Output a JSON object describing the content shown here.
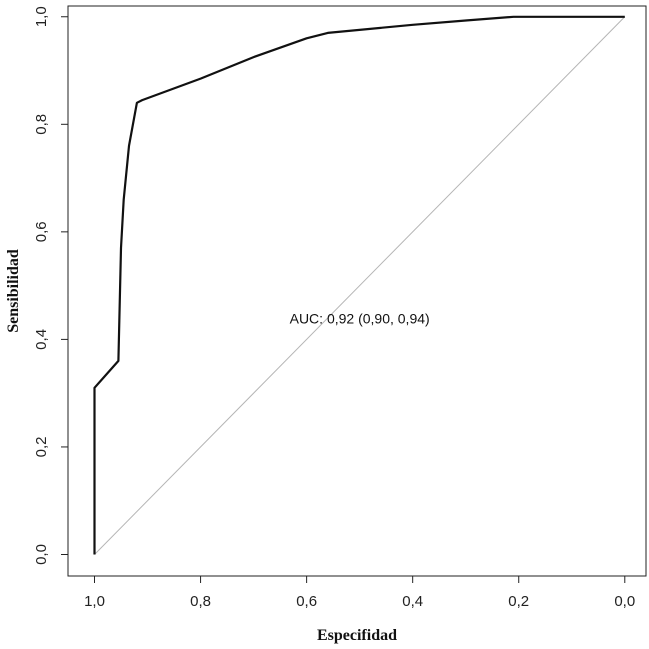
{
  "chart_data": {
    "type": "line",
    "xlabel": "Especifidad",
    "ylabel": "Sensibilidad",
    "xlim": [
      1.05,
      -0.04
    ],
    "ylim": [
      -0.04,
      1.02
    ],
    "x_reversed": true,
    "x_ticks": [
      1.0,
      0.8,
      0.6,
      0.4,
      0.2,
      0.0
    ],
    "x_tick_labels": [
      "1,0",
      "0,8",
      "0,6",
      "0,4",
      "0,2",
      "0,0"
    ],
    "y_ticks": [
      0.0,
      0.2,
      0.4,
      0.6,
      0.8,
      1.0
    ],
    "y_tick_labels": [
      "0,0",
      "0,2",
      "0,4",
      "0,6",
      "0,8",
      "1,0"
    ],
    "grid": false,
    "series": [
      {
        "points": [
          [
            1.0,
            0.0
          ],
          [
            1.0,
            0.14
          ],
          [
            1.0,
            0.31
          ],
          [
            0.955,
            0.36
          ],
          [
            0.95,
            0.57
          ],
          [
            0.945,
            0.66
          ],
          [
            0.935,
            0.76
          ],
          [
            0.92,
            0.84
          ],
          [
            0.91,
            0.845
          ],
          [
            0.8,
            0.885
          ],
          [
            0.7,
            0.925
          ],
          [
            0.6,
            0.96
          ],
          [
            0.56,
            0.97
          ],
          [
            0.4,
            0.985
          ],
          [
            0.3,
            0.993
          ],
          [
            0.21,
            1.0
          ],
          [
            0.1,
            1.0
          ],
          [
            0.0,
            1.0
          ]
        ],
        "color": "#111111"
      }
    ],
    "reference_line": {
      "points": [
        [
          1.0,
          0.0
        ],
        [
          0.0,
          1.0
        ]
      ],
      "color": "#b5b5b5"
    },
    "annotations": [
      {
        "text": "AUC: 0,92 (0,90, 0,94)",
        "x": 0.5,
        "y": 0.43
      }
    ]
  }
}
